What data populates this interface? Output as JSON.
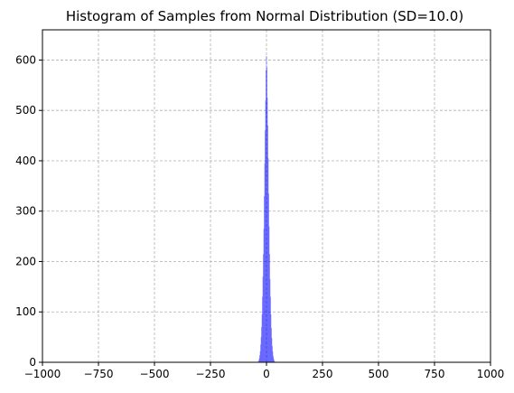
{
  "chart_data": {
    "type": "bar",
    "title": "Histogram of Samples from Normal Distribution (SD=10.0)",
    "xlabel": "",
    "ylabel": "",
    "xlim": [
      -1000,
      1000
    ],
    "ylim": [
      0,
      660
    ],
    "grid": true,
    "bar_color": "#0000ff",
    "bar_alpha": 0.7,
    "x_ticks": [
      -1000,
      -750,
      -500,
      -250,
      0,
      250,
      500,
      750,
      1000
    ],
    "x_tick_labels": [
      "−1000",
      "−750",
      "−500",
      "−250",
      "0",
      "250",
      "500",
      "750",
      "1000"
    ],
    "y_ticks": [
      0,
      100,
      200,
      300,
      400,
      500,
      600
    ],
    "y_tick_labels": [
      "0",
      "100",
      "200",
      "300",
      "400",
      "500",
      "600"
    ],
    "bin_width": 2,
    "bins": [
      {
        "x": -36,
        "count": 2
      },
      {
        "x": -34,
        "count": 4
      },
      {
        "x": -32,
        "count": 8
      },
      {
        "x": -30,
        "count": 14
      },
      {
        "x": -28,
        "count": 22
      },
      {
        "x": -26,
        "count": 35
      },
      {
        "x": -24,
        "count": 50
      },
      {
        "x": -22,
        "count": 70
      },
      {
        "x": -20,
        "count": 95
      },
      {
        "x": -18,
        "count": 130
      },
      {
        "x": -16,
        "count": 170
      },
      {
        "x": -14,
        "count": 215
      },
      {
        "x": -12,
        "count": 265
      },
      {
        "x": -10,
        "count": 330
      },
      {
        "x": -8,
        "count": 395
      },
      {
        "x": -6,
        "count": 460
      },
      {
        "x": -4,
        "count": 520
      },
      {
        "x": -2,
        "count": 580
      },
      {
        "x": 0,
        "count": 608
      },
      {
        "x": 2,
        "count": 585
      },
      {
        "x": 4,
        "count": 525
      },
      {
        "x": 6,
        "count": 470
      },
      {
        "x": 8,
        "count": 405
      },
      {
        "x": 10,
        "count": 335
      },
      {
        "x": 12,
        "count": 270
      },
      {
        "x": 14,
        "count": 215
      },
      {
        "x": 16,
        "count": 165
      },
      {
        "x": 18,
        "count": 130
      },
      {
        "x": 20,
        "count": 95
      },
      {
        "x": 22,
        "count": 68
      },
      {
        "x": 24,
        "count": 48
      },
      {
        "x": 26,
        "count": 32
      },
      {
        "x": 28,
        "count": 22
      },
      {
        "x": 30,
        "count": 13
      },
      {
        "x": 32,
        "count": 8
      },
      {
        "x": 34,
        "count": 4
      },
      {
        "x": 36,
        "count": 2
      }
    ]
  }
}
